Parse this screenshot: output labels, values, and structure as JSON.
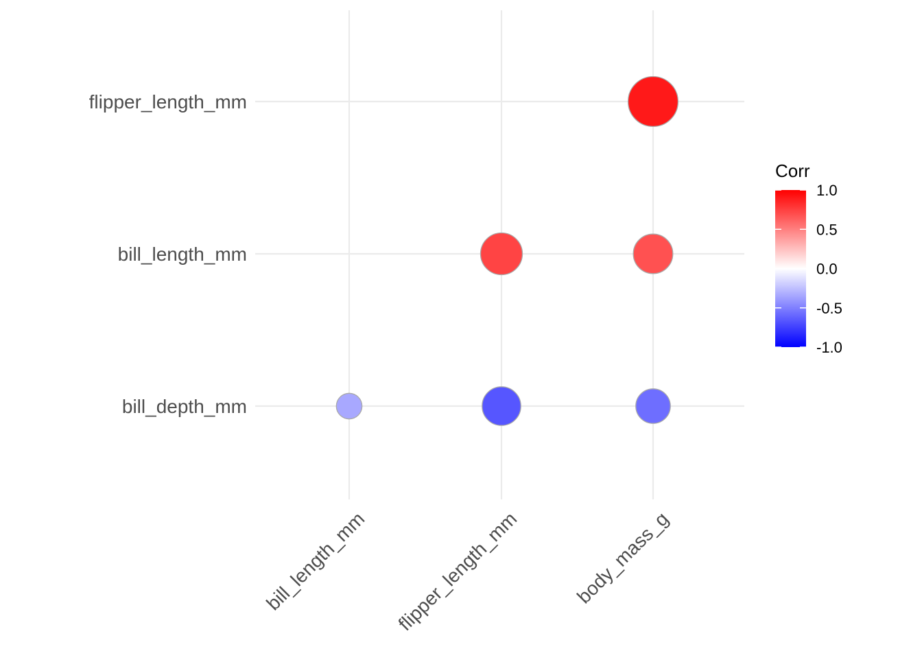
{
  "chart_data": {
    "type": "scatter",
    "subtype": "correlation-matrix-circles",
    "x_categories": [
      "bill_length_mm",
      "flipper_length_mm",
      "body_mass_g"
    ],
    "y_categories": [
      "bill_depth_mm",
      "bill_length_mm",
      "flipper_length_mm"
    ],
    "points": [
      {
        "x": "bill_length_mm",
        "y": "bill_depth_mm",
        "value": -0.24
      },
      {
        "x": "flipper_length_mm",
        "y": "bill_depth_mm",
        "value": -0.58
      },
      {
        "x": "body_mass_g",
        "y": "bill_depth_mm",
        "value": -0.47
      },
      {
        "x": "flipper_length_mm",
        "y": "bill_length_mm",
        "value": 0.66
      },
      {
        "x": "body_mass_g",
        "y": "bill_length_mm",
        "value": 0.6
      },
      {
        "x": "body_mass_g",
        "y": "flipper_length_mm",
        "value": 0.87
      }
    ],
    "legend": {
      "title": "Corr",
      "position": "right",
      "ticks": [
        "1.0",
        "0.5",
        "0.0",
        "-0.5",
        "-1.0"
      ],
      "limits": [
        -1,
        1
      ],
      "low_color": "#0000FF",
      "mid_color": "#FFFFFF",
      "high_color": "#FF0000"
    },
    "grid": true,
    "x_tick_rotation": "45 degrees",
    "point_outline_color": "#A9A9A9",
    "grid_color": "#EBEBEB",
    "axis_text_color": "#4D4D4D"
  }
}
